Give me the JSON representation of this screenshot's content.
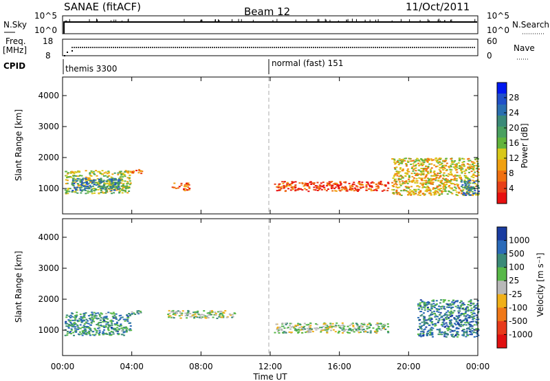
{
  "header": {
    "title": "SANAE (fitACF)",
    "beam": "Beam 12",
    "date": "11/Oct/2011"
  },
  "panels": {
    "nsky": {
      "left_label": "N.Sky",
      "left_ticks": [
        "10^5",
        "10^0"
      ],
      "right_label": "N.Search",
      "right_ticks": [
        "10^5",
        "10^0"
      ]
    },
    "freq": {
      "left_label_1": "Freq.",
      "left_label_2": "[MHz]",
      "left_ticks": [
        "18",
        "8"
      ],
      "right_label": "Nave",
      "right_ticks": [
        "60",
        "0"
      ]
    },
    "cpid": {
      "label": "CPID",
      "modes": [
        "themis 3300",
        "normal (fast) 151"
      ]
    }
  },
  "colors": {
    "ground_scatter": "#b4b4b4",
    "mode_divider": "#aaaaaa"
  },
  "chart_data": [
    {
      "type": "heatmap",
      "name": "power",
      "ylabel": "Slant Range [km]",
      "yticks": [
        "4000",
        "3000",
        "2000",
        "1000"
      ],
      "ylim": [
        180,
        4600
      ],
      "xlim": [
        0,
        24
      ],
      "colorbar": {
        "label": "Power [dB]",
        "ticks": [
          "28",
          "24",
          "20",
          "16",
          "12",
          "8",
          "4"
        ],
        "colors": [
          "#0018f0",
          "#2050c8",
          "#2a6fb0",
          "#3b8a78",
          "#4aa060",
          "#62b43c",
          "#d8c818",
          "#f0a010",
          "#f07010",
          "#e84018",
          "#e81010"
        ]
      },
      "features": [
        {
          "t": [
            0.1,
            3.9
          ],
          "r": [
            850,
            1600
          ],
          "level": 0.45,
          "note": "dense echoes"
        },
        {
          "t": [
            0.5,
            3.3
          ],
          "r": [
            950,
            1350
          ],
          "level": 0.75,
          "note": "strong slanted band"
        },
        {
          "t": [
            3.9,
            4.6
          ],
          "r": [
            1500,
            1650
          ],
          "level": 0.15
        },
        {
          "t": [
            6.3,
            7.3
          ],
          "r": [
            950,
            1200
          ],
          "level": 0.15
        },
        {
          "t": [
            12.2,
            18.8
          ],
          "r": [
            930,
            1250
          ],
          "level": 0.1
        },
        {
          "t": [
            19.0,
            24.0
          ],
          "r": [
            800,
            2000
          ],
          "level": 0.35
        },
        {
          "t": [
            23.0,
            24.0
          ],
          "r": [
            800,
            1300
          ],
          "level": 0.75
        }
      ]
    },
    {
      "type": "heatmap",
      "name": "velocity",
      "ylabel": "Slant Range [km]",
      "yticks": [
        "4000",
        "3000",
        "2000",
        "1000"
      ],
      "ylim": [
        180,
        4600
      ],
      "xlim": [
        0,
        24
      ],
      "xlabel": "Time UT",
      "xticks": [
        "00:00",
        "04:00",
        "08:00",
        "12:00",
        "16:00",
        "20:00",
        "00:00"
      ],
      "colorbar": {
        "label": "Velocity [m s⁻¹]",
        "ticks": [
          "1000",
          "500",
          "100",
          "25",
          "-25",
          "-100",
          "-500",
          "-1000"
        ],
        "colors": [
          "#1a3ca0",
          "#2a6ab8",
          "#3b8a78",
          "#58b848",
          "#b8b8b8",
          "#f0b018",
          "#f07818",
          "#e83a1a",
          "#e01010"
        ]
      },
      "features": [
        {
          "t": [
            0.1,
            3.9
          ],
          "r": [
            850,
            1600
          ],
          "level": 0.25
        },
        {
          "t": [
            3.9,
            4.6
          ],
          "r": [
            1500,
            1650
          ],
          "level": 0.3
        },
        {
          "t": [
            6.0,
            10.0
          ],
          "r": [
            1400,
            1650
          ],
          "level": 0.45
        },
        {
          "t": [
            12.2,
            18.8
          ],
          "r": [
            930,
            1250
          ],
          "level": 0.45
        },
        {
          "t": [
            20.5,
            24.0
          ],
          "r": [
            800,
            2000
          ],
          "level": 0.2
        }
      ]
    }
  ]
}
